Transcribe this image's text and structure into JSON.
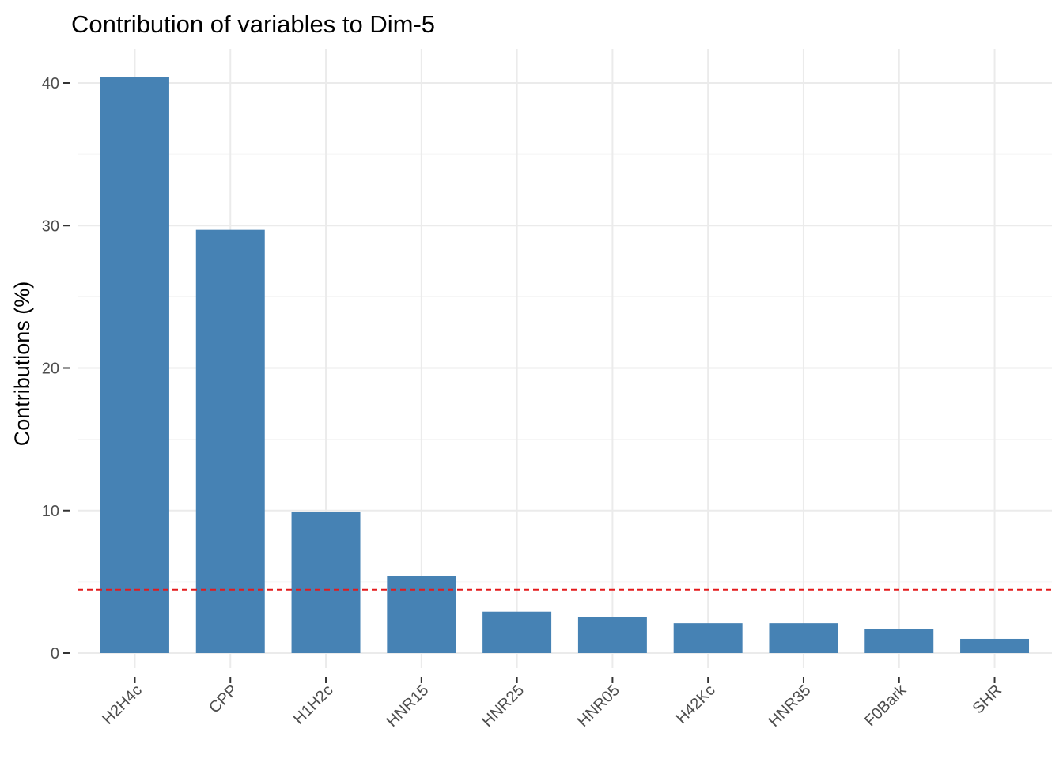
{
  "chart_data": {
    "type": "bar",
    "title": "Contribution of variables to Dim-5",
    "xlabel": "",
    "ylabel": "Contributions (%)",
    "categories": [
      "H2H4c",
      "CPP",
      "H1H2c",
      "HNR15",
      "HNR25",
      "HNR05",
      "H42Kc",
      "HNR35",
      "F0Bark",
      "SHR"
    ],
    "values": [
      40.4,
      29.7,
      9.9,
      5.4,
      2.9,
      2.5,
      2.1,
      2.1,
      1.7,
      1.0
    ],
    "ylim": [
      0,
      42.2
    ],
    "yticks": [
      0,
      10,
      20,
      30,
      40
    ],
    "reference_line": 4.45,
    "bar_color": "#4682b4",
    "reference_line_color": "#e41a1c",
    "grid": true
  }
}
